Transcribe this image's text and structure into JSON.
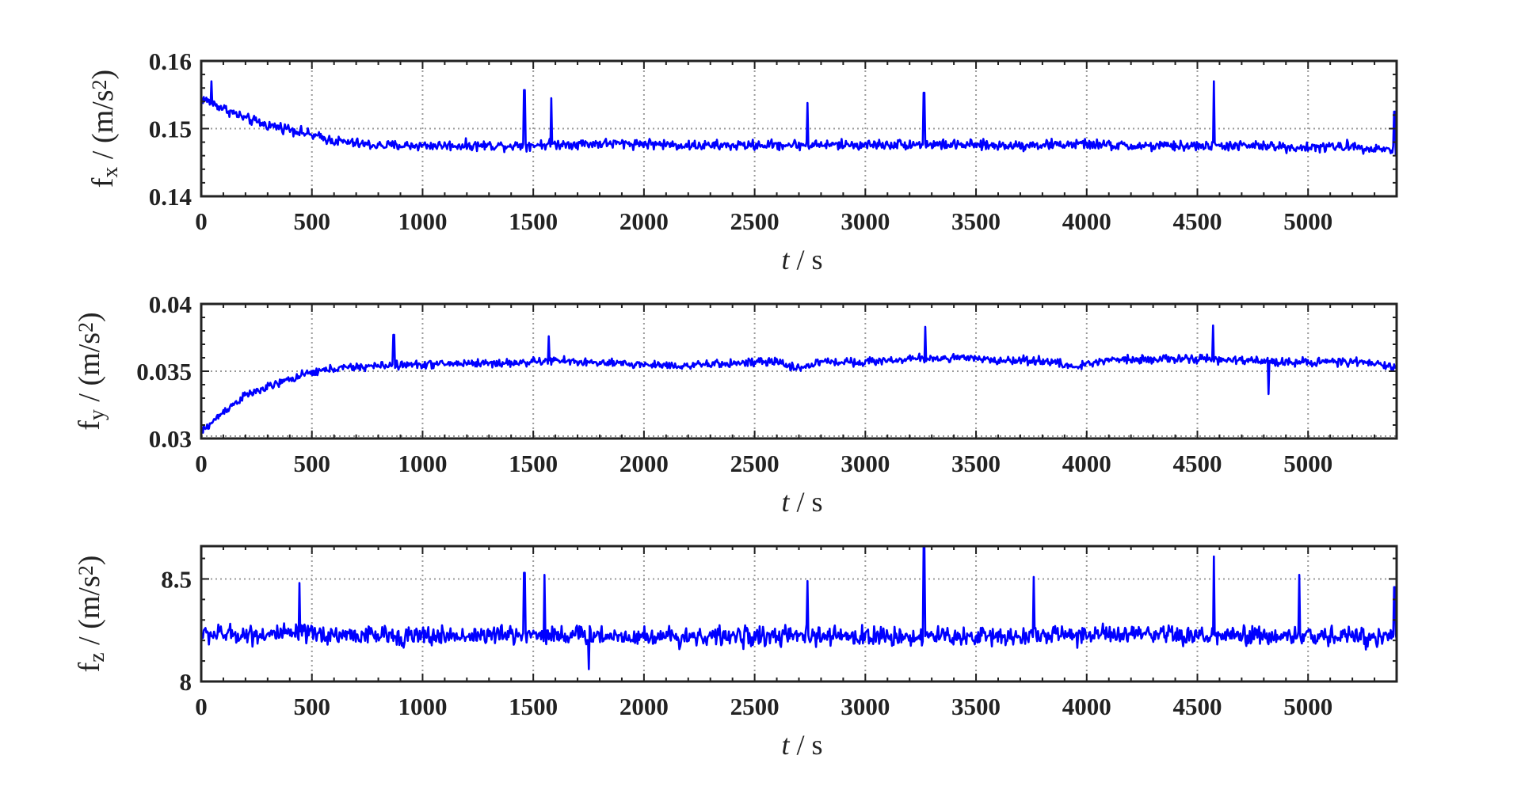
{
  "colors": {
    "series": "#0000ff",
    "axis": "#222222",
    "grid": "#9a9a9a"
  },
  "chart_data": [
    {
      "type": "line",
      "title": "",
      "xlabel_italic": "t",
      "xlabel_unit": " / s",
      "ylabel_main": "f",
      "ylabel_sub": "x",
      "ylabel_unit": " / (m/s",
      "ylabel_sup": "2",
      "ylabel_close": ")",
      "xlim": [
        0,
        5400
      ],
      "ylim": [
        0.14,
        0.16
      ],
      "xticks": [
        0,
        500,
        1000,
        1500,
        2000,
        2500,
        3000,
        3500,
        4000,
        4500,
        5000
      ],
      "xtick_labels": [
        "0",
        "500",
        "1000",
        "1500",
        "2000",
        "2500",
        "3000",
        "3500",
        "4000",
        "4500",
        "5000"
      ],
      "yticks": [
        0.14,
        0.15,
        0.16
      ],
      "ytick_labels": [
        "0.14",
        "0.15",
        "0.16"
      ],
      "grid": true,
      "series": [
        {
          "color": "#0000ff",
          "x": [
            0,
            100,
            200,
            300,
            400,
            500,
            600,
            700,
            800,
            900,
            1000,
            1200,
            1400,
            1600,
            1800,
            2000,
            2200,
            2400,
            2600,
            2800,
            3000,
            3200,
            3400,
            3600,
            3800,
            4000,
            4200,
            4400,
            4600,
            4800,
            5000,
            5200,
            5400
          ],
          "y": [
            0.1545,
            0.153,
            0.1515,
            0.1505,
            0.15,
            0.149,
            0.1482,
            0.1478,
            0.1475,
            0.1475,
            0.1475,
            0.1475,
            0.1475,
            0.1477,
            0.1478,
            0.1478,
            0.1475,
            0.1475,
            0.1476,
            0.1476,
            0.1476,
            0.1477,
            0.1476,
            0.1475,
            0.1476,
            0.1477,
            0.1474,
            0.1474,
            0.1475,
            0.1474,
            0.1472,
            0.1474,
            0.1468
          ],
          "noise": 0.0011,
          "spikes": [
            [
              45,
              0.157
            ],
            [
              1460,
              0.1557
            ],
            [
              1580,
              0.1545
            ],
            [
              2740,
              0.1538
            ],
            [
              3265,
              0.1553
            ],
            [
              4575,
              0.157
            ],
            [
              5390,
              0.1525
            ]
          ]
        }
      ]
    },
    {
      "type": "line",
      "title": "",
      "xlabel_italic": "t",
      "xlabel_unit": " / s",
      "ylabel_main": "f",
      "ylabel_sub": "y",
      "ylabel_unit": " / (m/s",
      "ylabel_sup": "2",
      "ylabel_close": ")",
      "xlim": [
        0,
        5400
      ],
      "ylim": [
        0.03,
        0.04
      ],
      "xticks": [
        0,
        500,
        1000,
        1500,
        2000,
        2500,
        3000,
        3500,
        4000,
        4500,
        5000
      ],
      "xtick_labels": [
        "0",
        "500",
        "1000",
        "1500",
        "2000",
        "2500",
        "3000",
        "3500",
        "4000",
        "4500",
        "5000"
      ],
      "yticks": [
        0.03,
        0.035,
        0.04
      ],
      "ytick_labels": [
        "0.03",
        "0.035",
        "0.04"
      ],
      "grid": true,
      "series": [
        {
          "color": "#0000ff",
          "x": [
            0,
            50,
            100,
            200,
            300,
            400,
            500,
            600,
            800,
            1000,
            1200,
            1400,
            1600,
            1800,
            2000,
            2200,
            2400,
            2600,
            2700,
            2800,
            3000,
            3200,
            3400,
            3600,
            3800,
            3950,
            4100,
            4300,
            4500,
            4700,
            4900,
            5100,
            5300,
            5400
          ],
          "y": [
            0.0305,
            0.0312,
            0.032,
            0.0332,
            0.0338,
            0.0344,
            0.0349,
            0.0352,
            0.0354,
            0.0355,
            0.0356,
            0.0356,
            0.0358,
            0.0356,
            0.0355,
            0.0354,
            0.0356,
            0.0357,
            0.0352,
            0.0357,
            0.0357,
            0.0359,
            0.036,
            0.0358,
            0.0358,
            0.0353,
            0.0359,
            0.0359,
            0.0359,
            0.0358,
            0.0357,
            0.0357,
            0.0356,
            0.0352
          ],
          "noise": 0.00045,
          "spikes": [
            [
              870,
              0.0377
            ],
            [
              1570,
              0.0376
            ],
            [
              3270,
              0.0383
            ],
            [
              4570,
              0.0384
            ],
            [
              4820,
              0.0333
            ]
          ]
        }
      ]
    },
    {
      "type": "line",
      "title": "",
      "xlabel_italic": "t",
      "xlabel_unit": " / s",
      "ylabel_main": "f",
      "ylabel_sub": "z",
      "ylabel_unit": " / (m/s",
      "ylabel_sup": "2",
      "ylabel_close": ")",
      "xlim": [
        0,
        5400
      ],
      "ylim": [
        8.0,
        8.66
      ],
      "xticks": [
        0,
        500,
        1000,
        1500,
        2000,
        2500,
        3000,
        3500,
        4000,
        4500,
        5000
      ],
      "xtick_labels": [
        "0",
        "500",
        "1000",
        "1500",
        "2000",
        "2500",
        "3000",
        "3500",
        "4000",
        "4500",
        "5000"
      ],
      "yticks": [
        8,
        8.5
      ],
      "ytick_labels": [
        "8",
        "8.5"
      ],
      "grid": true,
      "series": [
        {
          "color": "#0000ff",
          "x": [
            0,
            500,
            1000,
            1500,
            2000,
            2500,
            3000,
            3500,
            4000,
            4500,
            5000,
            5400
          ],
          "y": [
            8.23,
            8.23,
            8.22,
            8.23,
            8.22,
            8.22,
            8.22,
            8.22,
            8.23,
            8.22,
            8.22,
            8.22
          ],
          "noise": 0.07,
          "spikes": [
            [
              445,
              8.48
            ],
            [
              1460,
              8.53
            ],
            [
              1550,
              8.52
            ],
            [
              1750,
              8.06
            ],
            [
              2740,
              8.49
            ],
            [
              3265,
              8.66
            ],
            [
              3760,
              8.51
            ],
            [
              4575,
              8.61
            ],
            [
              4960,
              8.52
            ],
            [
              5390,
              8.46
            ]
          ]
        }
      ]
    }
  ]
}
